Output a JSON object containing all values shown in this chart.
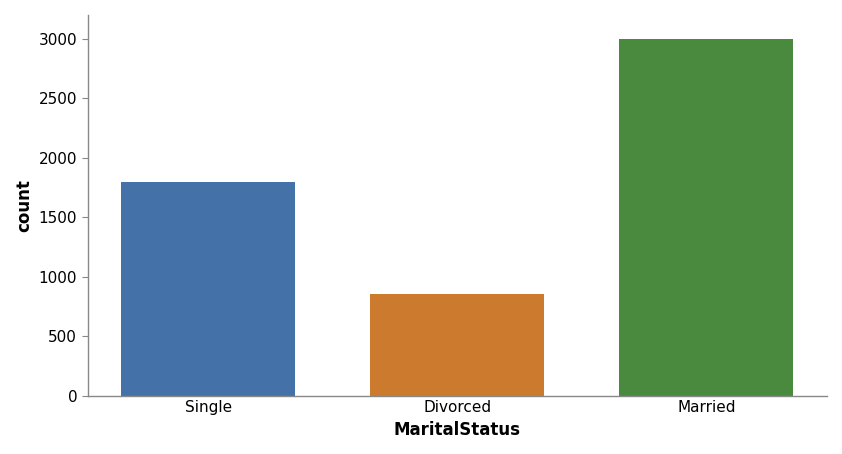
{
  "categories": [
    "Single",
    "Divorced",
    "Married"
  ],
  "values": [
    1800,
    850,
    3000
  ],
  "bar_colors": [
    "#4472a8",
    "#cc7a2e",
    "#4a8a3f"
  ],
  "xlabel": "MaritalStatus",
  "ylabel": "count",
  "ylim": [
    0,
    3200
  ],
  "yticks": [
    0,
    500,
    1000,
    1500,
    2000,
    2500,
    3000
  ],
  "background_color": "#ffffff",
  "spine_color": "#888888",
  "figsize": [
    8.42,
    4.54
  ],
  "dpi": 100
}
